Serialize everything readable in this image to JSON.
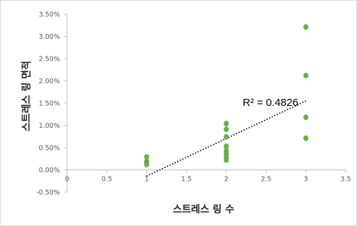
{
  "chart_data": {
    "type": "scatter",
    "xlabel": "스트레스 링 수",
    "ylabel": "스트레스 링 면적",
    "xlim": [
      0,
      3.5
    ],
    "ylim": [
      -0.005,
      0.035
    ],
    "x_ticks": [
      0,
      0.5,
      1,
      1.5,
      2,
      2.5,
      3,
      3.5
    ],
    "x_tick_labels": [
      "0",
      "0.5",
      "1",
      "1.5",
      "2",
      "2.5",
      "3",
      "3.5"
    ],
    "y_ticks": [
      -0.005,
      0,
      0.005,
      0.01,
      0.015,
      0.02,
      0.025,
      0.03,
      0.035
    ],
    "y_tick_labels": [
      "-0.50%",
      "0.00%",
      "0.50%",
      "1.00%",
      "1.50%",
      "2.00%",
      "2.50%",
      "3.00%",
      "3.50%"
    ],
    "grid": false,
    "legend": "none",
    "point_color": "#70ad47",
    "points": [
      {
        "x": 1,
        "y": 0.0029
      },
      {
        "x": 1,
        "y": 0.0019
      },
      {
        "x": 1,
        "y": 0.0014
      },
      {
        "x": 1,
        "y": 0.0012
      },
      {
        "x": 2,
        "y": 0.0104
      },
      {
        "x": 2,
        "y": 0.0091
      },
      {
        "x": 2,
        "y": 0.0074
      },
      {
        "x": 2,
        "y": 0.0053
      },
      {
        "x": 2,
        "y": 0.0043
      },
      {
        "x": 2,
        "y": 0.0036
      },
      {
        "x": 2,
        "y": 0.0028
      },
      {
        "x": 2,
        "y": 0.0022
      },
      {
        "x": 3,
        "y": 0.0321
      },
      {
        "x": 3,
        "y": 0.0212
      },
      {
        "x": 3,
        "y": 0.0118
      },
      {
        "x": 3,
        "y": 0.0071
      }
    ],
    "trendline": {
      "type": "linear",
      "style": "dotted",
      "color": "#000000",
      "x_range": [
        1,
        3
      ],
      "y_start": -0.0014,
      "y_end": 0.0155,
      "r2_label": "R² = 0.4826",
      "r2_value": 0.4826
    }
  }
}
